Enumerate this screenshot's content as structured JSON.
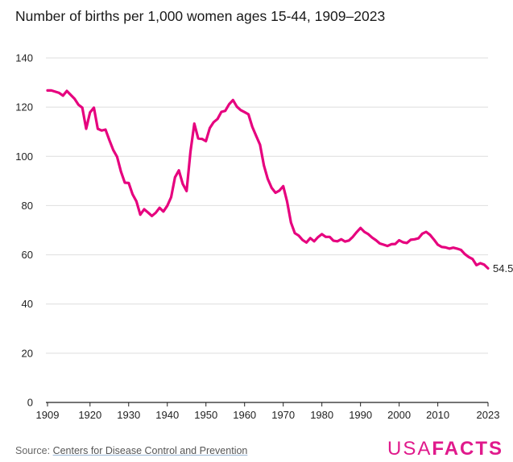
{
  "colors": {
    "line": "#e6007e",
    "grid": "#dedede",
    "axis": "#222222",
    "text": "#222222",
    "brand": "#e01a8c"
  },
  "source": {
    "prefix": "Source:",
    "link_text": "Centers for Disease Control and Prevention"
  },
  "logo": {
    "usa": "USA",
    "facts": "FACTS"
  },
  "chart_data": {
    "type": "line",
    "title": "Number of births per 1,000 women ages 15-44, 1909–2023",
    "xlabel": "",
    "ylabel": "",
    "xlim": [
      1909,
      2023
    ],
    "ylim": [
      0,
      140
    ],
    "y_ticks": [
      0,
      20,
      40,
      60,
      80,
      100,
      120,
      140
    ],
    "x_tick_labels": [
      "1909",
      "1920",
      "1930",
      "1940",
      "1950",
      "1960",
      "1970",
      "1980",
      "1990",
      "2000",
      "2010",
      "2023"
    ],
    "grid": true,
    "end_label": "54.5",
    "series": [
      {
        "x": [
          1909,
          1910,
          1911,
          1912,
          1913,
          1914,
          1915,
          1916,
          1917,
          1918,
          1919,
          1920,
          1921,
          1922,
          1923,
          1924,
          1925,
          1926,
          1927,
          1928,
          1929,
          1930,
          1931,
          1932,
          1933,
          1934,
          1935,
          1936,
          1937,
          1938,
          1939,
          1940,
          1941,
          1942,
          1943,
          1944,
          1945,
          1946,
          1947,
          1948,
          1949,
          1950,
          1951,
          1952,
          1953,
          1954,
          1955,
          1956,
          1957,
          1958,
          1959,
          1960,
          1961,
          1962,
          1963,
          1964,
          1965,
          1966,
          1967,
          1968,
          1969,
          1970,
          1971,
          1972,
          1973,
          1974,
          1975,
          1976,
          1977,
          1978,
          1979,
          1980,
          1981,
          1982,
          1983,
          1984,
          1985,
          1986,
          1987,
          1988,
          1989,
          1990,
          1991,
          1992,
          1993,
          1994,
          1995,
          1996,
          1997,
          1998,
          1999,
          2000,
          2001,
          2002,
          2003,
          2004,
          2005,
          2006,
          2007,
          2008,
          2009,
          2010,
          2011,
          2012,
          2013,
          2014,
          2015,
          2016,
          2017,
          2018,
          2019,
          2020,
          2021,
          2022,
          2023
        ],
        "y": [
          126.8,
          126.8,
          126.3,
          125.8,
          124.7,
          126.6,
          125.0,
          123.4,
          121.0,
          119.8,
          111.2,
          117.9,
          119.8,
          111.2,
          110.5,
          110.9,
          106.6,
          102.6,
          99.8,
          93.8,
          89.3,
          89.2,
          84.6,
          81.7,
          76.3,
          78.5,
          77.2,
          75.8,
          77.1,
          79.1,
          77.6,
          79.9,
          83.4,
          91.5,
          94.3,
          88.8,
          85.9,
          101.9,
          113.3,
          107.3,
          107.1,
          106.2,
          111.5,
          113.9,
          115.2,
          118.1,
          118.5,
          121.2,
          122.9,
          120.2,
          118.8,
          118.0,
          117.1,
          112.0,
          108.3,
          104.7,
          96.3,
          90.8,
          87.2,
          85.2,
          86.1,
          87.9,
          81.6,
          73.1,
          68.8,
          67.8,
          66.0,
          65.0,
          66.8,
          65.5,
          67.2,
          68.4,
          67.3,
          67.3,
          65.7,
          65.5,
          66.3,
          65.4,
          65.8,
          67.3,
          69.2,
          70.9,
          69.3,
          68.4,
          67.0,
          65.9,
          64.6,
          64.1,
          63.6,
          64.3,
          64.4,
          65.9,
          65.1,
          64.8,
          66.1,
          66.3,
          66.7,
          68.6,
          69.3,
          68.1,
          66.2,
          64.1,
          63.2,
          63.0,
          62.5,
          62.9,
          62.5,
          62.0,
          60.3,
          59.1,
          58.3,
          55.8,
          56.6,
          56.0,
          54.5
        ]
      }
    ]
  }
}
